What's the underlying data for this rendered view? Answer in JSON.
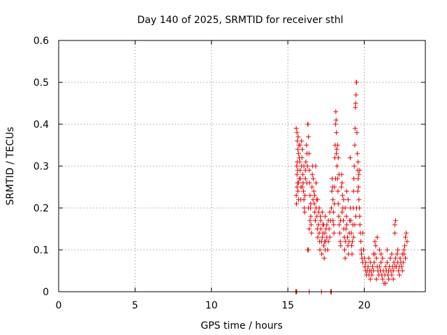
{
  "chart_data": {
    "type": "scatter",
    "title": "Day 140 of 2025, SRMTID for receiver sthl",
    "xlabel": "GPS time / hours",
    "ylabel": "SRMTID / TECUs",
    "xlim": [
      0,
      24
    ],
    "ylim": [
      0,
      0.6
    ],
    "x_ticks": [
      0,
      5,
      10,
      15,
      20
    ],
    "x_tick_labels": [
      "0",
      "5",
      "10",
      "15",
      "20"
    ],
    "y_ticks": [
      0,
      0.1,
      0.2,
      0.3,
      0.4,
      0.5,
      0.6
    ],
    "y_tick_labels": [
      "0",
      "0.1",
      "0.2",
      "0.3",
      "0.4",
      "0.5",
      "0.6"
    ],
    "grid": true,
    "series": [
      {
        "name": "SRMTID",
        "color": "#e00000",
        "marker": "plus",
        "points": [
          [
            15.52,
            0.0
          ],
          [
            15.55,
            0.0
          ],
          [
            15.58,
            0.0
          ],
          [
            16.4,
            0.0
          ],
          [
            17.2,
            0.0
          ],
          [
            17.8,
            0.0
          ],
          [
            17.85,
            0.0
          ],
          [
            15.55,
            0.39
          ],
          [
            15.6,
            0.38
          ],
          [
            15.62,
            0.36
          ],
          [
            15.65,
            0.34
          ],
          [
            15.68,
            0.37
          ],
          [
            15.7,
            0.33
          ],
          [
            15.72,
            0.35
          ],
          [
            15.75,
            0.32
          ],
          [
            15.58,
            0.3
          ],
          [
            15.6,
            0.28
          ],
          [
            15.63,
            0.26
          ],
          [
            15.66,
            0.24
          ],
          [
            15.7,
            0.22
          ],
          [
            15.55,
            0.23
          ],
          [
            15.57,
            0.21
          ],
          [
            15.6,
            0.25
          ],
          [
            15.78,
            0.31
          ],
          [
            15.8,
            0.29
          ],
          [
            15.83,
            0.27
          ],
          [
            15.86,
            0.25
          ],
          [
            15.9,
            0.3
          ],
          [
            15.92,
            0.32
          ],
          [
            15.95,
            0.34
          ],
          [
            15.98,
            0.28
          ],
          [
            16.0,
            0.26
          ],
          [
            16.02,
            0.24
          ],
          [
            16.05,
            0.22
          ],
          [
            16.08,
            0.2
          ],
          [
            16.1,
            0.19
          ],
          [
            16.12,
            0.23
          ],
          [
            16.15,
            0.27
          ],
          [
            16.18,
            0.31
          ],
          [
            16.22,
            0.35
          ],
          [
            16.25,
            0.33
          ],
          [
            16.28,
            0.3
          ],
          [
            16.3,
            0.4
          ],
          [
            16.32,
            0.4
          ],
          [
            16.35,
            0.37
          ],
          [
            16.38,
            0.33
          ],
          [
            16.4,
            0.29
          ],
          [
            16.42,
            0.26
          ],
          [
            16.45,
            0.23
          ],
          [
            16.48,
            0.2
          ],
          [
            16.5,
            0.18
          ],
          [
            16.52,
            0.16
          ],
          [
            16.55,
            0.14
          ],
          [
            16.3,
            0.1
          ],
          [
            16.35,
            0.1
          ],
          [
            16.58,
            0.25
          ],
          [
            16.6,
            0.28
          ],
          [
            16.63,
            0.3
          ],
          [
            16.66,
            0.27
          ],
          [
            16.7,
            0.24
          ],
          [
            16.73,
            0.21
          ],
          [
            16.76,
            0.19
          ],
          [
            16.8,
            0.17
          ],
          [
            16.82,
            0.3
          ],
          [
            16.85,
            0.26
          ],
          [
            16.88,
            0.22
          ],
          [
            16.9,
            0.18
          ],
          [
            16.93,
            0.15
          ],
          [
            16.96,
            0.13
          ],
          [
            17.0,
            0.16
          ],
          [
            17.02,
            0.19
          ],
          [
            17.05,
            0.14
          ],
          [
            17.08,
            0.12
          ],
          [
            17.1,
            0.1
          ],
          [
            17.13,
            0.18
          ],
          [
            17.16,
            0.15
          ],
          [
            17.2,
            0.12
          ],
          [
            17.22,
            0.09
          ],
          [
            17.25,
            0.13
          ],
          [
            17.28,
            0.16
          ],
          [
            17.3,
            0.14
          ],
          [
            17.35,
            0.11
          ],
          [
            17.38,
            0.08
          ],
          [
            17.4,
            0.12
          ],
          [
            17.42,
            0.14
          ],
          [
            17.45,
            0.1
          ],
          [
            17.48,
            0.12
          ],
          [
            17.5,
            0.15
          ],
          [
            17.55,
            0.13
          ],
          [
            17.6,
            0.1
          ],
          [
            17.65,
            0.12
          ],
          [
            17.7,
            0.15
          ],
          [
            17.75,
            0.13
          ],
          [
            17.8,
            0.17
          ],
          [
            17.85,
            0.2
          ],
          [
            17.88,
            0.24
          ],
          [
            17.9,
            0.27
          ],
          [
            17.93,
            0.25
          ],
          [
            17.95,
            0.22
          ],
          [
            17.98,
            0.19
          ],
          [
            18.0,
            0.16
          ],
          [
            18.02,
            0.14
          ],
          [
            18.05,
            0.25
          ],
          [
            18.08,
            0.32
          ],
          [
            18.1,
            0.35
          ],
          [
            18.12,
            0.4
          ],
          [
            18.14,
            0.43
          ],
          [
            18.16,
            0.41
          ],
          [
            18.18,
            0.38
          ],
          [
            18.2,
            0.34
          ],
          [
            18.22,
            0.3
          ],
          [
            18.25,
            0.27
          ],
          [
            18.28,
            0.24
          ],
          [
            18.3,
            0.21
          ],
          [
            18.33,
            0.18
          ],
          [
            18.36,
            0.16
          ],
          [
            18.4,
            0.14
          ],
          [
            18.43,
            0.12
          ],
          [
            18.46,
            0.11
          ],
          [
            18.5,
            0.25
          ],
          [
            18.52,
            0.28
          ],
          [
            18.55,
            0.26
          ],
          [
            18.58,
            0.23
          ],
          [
            18.6,
            0.2
          ],
          [
            18.63,
            0.17
          ],
          [
            18.66,
            0.15
          ],
          [
            18.7,
            0.13
          ],
          [
            18.72,
            0.1
          ],
          [
            18.75,
            0.08
          ],
          [
            18.78,
            0.12
          ],
          [
            18.8,
            0.15
          ],
          [
            18.83,
            0.18
          ],
          [
            18.86,
            0.16
          ],
          [
            18.9,
            0.13
          ],
          [
            18.93,
            0.11
          ],
          [
            18.96,
            0.09
          ],
          [
            19.0,
            0.12
          ],
          [
            19.02,
            0.14
          ],
          [
            19.05,
            0.17
          ],
          [
            19.08,
            0.32
          ],
          [
            19.1,
            0.2
          ],
          [
            19.12,
            0.17
          ],
          [
            19.15,
            0.14
          ],
          [
            19.18,
            0.11
          ],
          [
            19.2,
            0.09
          ],
          [
            19.22,
            0.12
          ],
          [
            19.25,
            0.16
          ],
          [
            19.28,
            0.2
          ],
          [
            19.3,
            0.24
          ],
          [
            19.32,
            0.27
          ],
          [
            19.35,
            0.3
          ],
          [
            19.38,
            0.35
          ],
          [
            19.4,
            0.39
          ],
          [
            19.42,
            0.44
          ],
          [
            19.44,
            0.45
          ],
          [
            19.46,
            0.47
          ],
          [
            19.48,
            0.5
          ],
          [
            19.5,
            0.5
          ],
          [
            19.52,
            0.38
          ],
          [
            19.55,
            0.33
          ],
          [
            19.58,
            0.29
          ],
          [
            19.6,
            0.27
          ],
          [
            19.62,
            0.25
          ],
          [
            19.65,
            0.22
          ],
          [
            19.68,
            0.2
          ],
          [
            19.7,
            0.18
          ],
          [
            19.72,
            0.16
          ],
          [
            19.75,
            0.14
          ],
          [
            19.78,
            0.12
          ],
          [
            19.8,
            0.1
          ],
          [
            19.82,
            0.09
          ],
          [
            19.85,
            0.08
          ],
          [
            19.9,
            0.07
          ],
          [
            19.95,
            0.1
          ],
          [
            20.0,
            0.08
          ],
          [
            20.05,
            0.06
          ],
          [
            20.1,
            0.05
          ],
          [
            20.15,
            0.04
          ],
          [
            20.2,
            0.05
          ],
          [
            20.25,
            0.06
          ],
          [
            20.3,
            0.04
          ],
          [
            20.35,
            0.05
          ],
          [
            20.4,
            0.07
          ],
          [
            20.45,
            0.05
          ],
          [
            20.5,
            0.04
          ],
          [
            20.55,
            0.06
          ],
          [
            20.6,
            0.05
          ],
          [
            20.65,
            0.07
          ],
          [
            20.7,
            0.09
          ],
          [
            20.75,
            0.11
          ],
          [
            20.8,
            0.08
          ],
          [
            20.85,
            0.06
          ],
          [
            20.9,
            0.05
          ],
          [
            20.95,
            0.04
          ],
          [
            21.0,
            0.06
          ],
          [
            21.05,
            0.05
          ],
          [
            21.1,
            0.07
          ],
          [
            21.15,
            0.04
          ],
          [
            21.2,
            0.03
          ],
          [
            21.25,
            0.05
          ],
          [
            21.3,
            0.02
          ],
          [
            21.35,
            0.04
          ],
          [
            21.4,
            0.06
          ],
          [
            21.45,
            0.05
          ],
          [
            21.5,
            0.07
          ],
          [
            21.55,
            0.04
          ],
          [
            21.6,
            0.05
          ],
          [
            21.65,
            0.06
          ],
          [
            21.7,
            0.08
          ],
          [
            21.75,
            0.05
          ],
          [
            21.8,
            0.04
          ],
          [
            21.85,
            0.06
          ],
          [
            21.9,
            0.05
          ],
          [
            21.95,
            0.07
          ],
          [
            22.0,
            0.06
          ],
          [
            22.05,
            0.08
          ],
          [
            22.1,
            0.06
          ],
          [
            22.15,
            0.09
          ],
          [
            22.2,
            0.07
          ],
          [
            22.25,
            0.05
          ],
          [
            22.3,
            0.06
          ],
          [
            22.35,
            0.08
          ],
          [
            22.4,
            0.07
          ],
          [
            22.45,
            0.06
          ],
          [
            22.5,
            0.05
          ],
          [
            22.55,
            0.07
          ],
          [
            22.6,
            0.09
          ],
          [
            22.65,
            0.11
          ],
          [
            22.7,
            0.13
          ],
          [
            22.75,
            0.14
          ],
          [
            22.8,
            0.12
          ],
          [
            20.85,
            0.13
          ],
          [
            21.5,
            0.1
          ],
          [
            22.0,
            0.16
          ],
          [
            22.05,
            0.17
          ],
          [
            22.0,
            0.14
          ],
          [
            22.6,
            0.1
          ],
          [
            22.7,
            0.08
          ],
          [
            21.0,
            0.1
          ],
          [
            20.6,
            0.09
          ],
          [
            20.3,
            0.08
          ],
          [
            21.2,
            0.08
          ],
          [
            21.8,
            0.09
          ],
          [
            22.2,
            0.1
          ],
          [
            22.5,
            0.09
          ],
          [
            20.1,
            0.07
          ],
          [
            20.4,
            0.03
          ],
          [
            21.4,
            0.02
          ],
          [
            21.6,
            0.03
          ],
          [
            21.9,
            0.03
          ],
          [
            22.3,
            0.04
          ],
          [
            20.8,
            0.03
          ],
          [
            21.1,
            0.09
          ],
          [
            20.7,
            0.12
          ],
          [
            19.9,
            0.14
          ],
          [
            19.7,
            0.29
          ],
          [
            19.6,
            0.31
          ],
          [
            19.65,
            0.28
          ],
          [
            19.58,
            0.24
          ],
          [
            19.5,
            0.2
          ],
          [
            19.45,
            0.18
          ],
          [
            19.38,
            0.16
          ],
          [
            19.3,
            0.13
          ],
          [
            18.95,
            0.22
          ],
          [
            18.85,
            0.24
          ],
          [
            18.75,
            0.2
          ],
          [
            18.65,
            0.22
          ],
          [
            18.55,
            0.19
          ],
          [
            18.45,
            0.17
          ],
          [
            18.35,
            0.28
          ],
          [
            18.3,
            0.32
          ],
          [
            18.25,
            0.35
          ],
          [
            18.18,
            0.33
          ],
          [
            18.12,
            0.27
          ],
          [
            18.05,
            0.21
          ],
          [
            17.95,
            0.17
          ],
          [
            17.75,
            0.19
          ],
          [
            17.65,
            0.17
          ],
          [
            17.55,
            0.16
          ],
          [
            17.45,
            0.18
          ],
          [
            17.35,
            0.16
          ],
          [
            17.25,
            0.19
          ],
          [
            17.15,
            0.17
          ],
          [
            17.05,
            0.2
          ],
          [
            16.95,
            0.22
          ],
          [
            16.85,
            0.2
          ],
          [
            16.75,
            0.23
          ],
          [
            16.65,
            0.22
          ],
          [
            16.5,
            0.21
          ],
          [
            16.45,
            0.17
          ],
          [
            16.4,
            0.15
          ],
          [
            16.35,
            0.2
          ],
          [
            16.25,
            0.26
          ],
          [
            16.15,
            0.29
          ],
          [
            16.05,
            0.3
          ],
          [
            15.95,
            0.25
          ],
          [
            15.85,
            0.22
          ],
          [
            15.75,
            0.27
          ],
          [
            15.65,
            0.29
          ],
          [
            15.7,
            0.26
          ],
          [
            15.62,
            0.31
          ],
          [
            15.8,
            0.35
          ],
          [
            15.9,
            0.36
          ]
        ]
      }
    ]
  }
}
